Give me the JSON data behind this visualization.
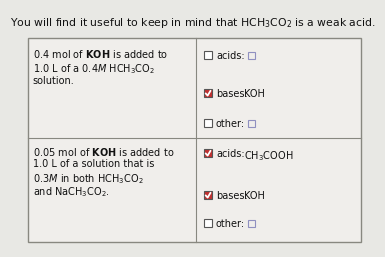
{
  "bg_color": "#e8e8e4",
  "table_bg": "#f0eeeb",
  "white": "#ffffff",
  "border_color": "#888880",
  "title": "You will find it useful to keep in mind that $\\mathrm{HCH_3CO_2}$ is a weak acid.",
  "title_fontsize": 7.8,
  "cell_fontsize": 7.0,
  "small_fontsize": 6.2,
  "row1_left_lines": [
    "0.4 mol of $\\mathbf{KOH}$ is added to",
    "1.0 L of a 0.4$M$ $\\mathrm{HCH_3CO_2}$",
    "solution."
  ],
  "row2_left_lines": [
    "0.05 mol of $\\mathbf{KOH}$ is added to",
    "1.0 L of a solution that is",
    "0.3$M$ in both $\\mathrm{HCH_3CO_2}$",
    "and $\\mathrm{NaCH_3CO_2}$."
  ],
  "row1_items": [
    {
      "checked": false,
      "label": "acids:",
      "value": ""
    },
    {
      "checked": true,
      "label": "bases:",
      "value": "KOH"
    },
    {
      "checked": false,
      "label": "other:",
      "value": ""
    }
  ],
  "row2_items": [
    {
      "checked": true,
      "label": "acids:",
      "value": "$\\mathrm{CH_3COOH}$"
    },
    {
      "checked": true,
      "label": "bases:",
      "value": "KOH"
    },
    {
      "checked": false,
      "label": "other:",
      "value": ""
    }
  ],
  "checked_face": "#c03030",
  "unchecked_face": "#ffffff",
  "check_edge": "#555555",
  "small_box_color": "#9090c0"
}
